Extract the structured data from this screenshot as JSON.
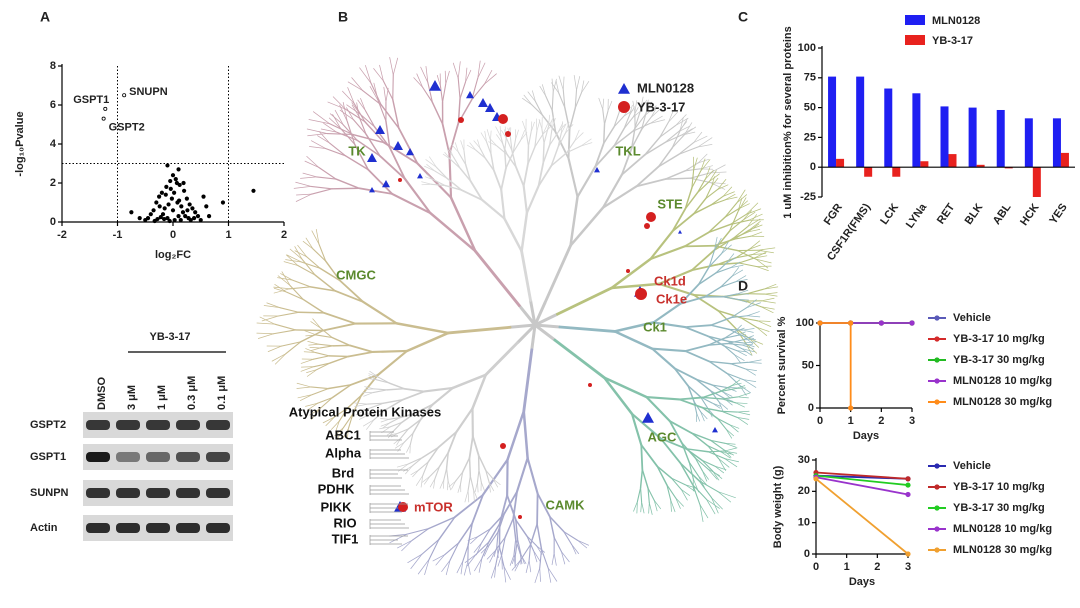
{
  "panel_labels": [
    "A",
    "B",
    "C",
    "D"
  ],
  "chart_data": [
    {
      "type": "scatter",
      "xlabel": "log₂FC",
      "ylabel": "-log₁₀Pvalue",
      "color": "#000000",
      "xlim": [
        -2,
        2
      ],
      "xticks": [
        -2,
        -1,
        0,
        1,
        2
      ],
      "ylim": [
        0,
        8
      ],
      "yticks": [
        0,
        2,
        4,
        6,
        8
      ],
      "vlines": [
        -1,
        1
      ],
      "hlines": [
        3
      ],
      "x": [
        -1.22,
        -0.88,
        -1.25,
        -0.1,
        0.1,
        1.45,
        0.9,
        -0.75,
        -0.6,
        0.6,
        0.55,
        0.0,
        0.05,
        -0.05,
        0.12,
        -0.12,
        0.2,
        -0.2,
        0.25,
        -0.25,
        0.3,
        -0.3,
        0.35,
        -0.35,
        0.4,
        -0.4,
        0.02,
        -0.02,
        0.08,
        -0.08,
        0.15,
        -0.15,
        0.18,
        -0.18,
        0.22,
        -0.22,
        0.28,
        -0.28,
        0.45,
        -0.45,
        0.5,
        0.0,
        0.1,
        -0.1,
        0.03,
        -0.06,
        0.14,
        -0.16,
        0.32,
        -0.33,
        0.07,
        -0.04,
        0.26,
        -0.24,
        0.38,
        0.65,
        -0.5,
        0.11,
        -0.13,
        0.19
      ],
      "values": [
        5.8,
        6.5,
        5.3,
        2.9,
        2.7,
        1.6,
        1.0,
        0.5,
        0.2,
        0.8,
        1.3,
        2.4,
        2.2,
        2.1,
        1.9,
        1.8,
        1.6,
        1.5,
        1.2,
        1.3,
        0.9,
        1.0,
        0.7,
        0.6,
        0.5,
        0.4,
        1.5,
        1.2,
        1.0,
        0.9,
        0.8,
        0.7,
        0.5,
        0.4,
        0.3,
        0.25,
        0.2,
        0.15,
        0.3,
        0.2,
        0.1,
        0.6,
        0.3,
        0.2,
        0.1,
        0.05,
        0.1,
        0.15,
        0.1,
        0.05,
        2.0,
        1.7,
        0.6,
        0.8,
        0.2,
        0.3,
        0.1,
        1.1,
        1.4,
        2.0
      ],
      "point_labels": [
        "GSPT1",
        "SNUPN",
        "GSPT2",
        null,
        null,
        null,
        null,
        null,
        null,
        null,
        null,
        null,
        null,
        null,
        null,
        null,
        null,
        null,
        null,
        null,
        null,
        null,
        null,
        null,
        null,
        null,
        null,
        null,
        null,
        null,
        null,
        null,
        null,
        null,
        null,
        null,
        null,
        null,
        null,
        null,
        null,
        null,
        null,
        null,
        null,
        null,
        null,
        null,
        null,
        null,
        null,
        null,
        null,
        null,
        null,
        null,
        null,
        null,
        null,
        null
      ]
    },
    {
      "type": "bar",
      "ylabel": "1 uM inhibition% for several proteins",
      "categories": [
        "FGR",
        "CSF1R(FMS)",
        "LCK",
        "LYNa",
        "RET",
        "BLK",
        "ABL",
        "HCK",
        "YES"
      ],
      "series": [
        {
          "name": "MLN0128",
          "color": "#1f1ff2",
          "values": [
            76,
            76,
            66,
            62,
            51,
            50,
            48,
            41,
            41
          ]
        },
        {
          "name": "YB-3-17",
          "color": "#e8221e",
          "values": [
            7,
            -8,
            -8,
            5,
            11,
            2,
            -1,
            -25,
            12
          ]
        }
      ],
      "ylim": [
        -25,
        100
      ],
      "yticks": [
        -25,
        0,
        25,
        50,
        75,
        100
      ]
    },
    {
      "type": "line",
      "ylabel": "Percent survival %",
      "xlabel": "Days",
      "x": [
        0,
        1,
        2,
        3
      ],
      "xlim": [
        0,
        3
      ],
      "xticks": [
        0,
        1,
        2,
        3
      ],
      "ylim": [
        0,
        100
      ],
      "yticks": [
        0,
        50,
        100
      ],
      "series": [
        {
          "name": "Vehicle",
          "color": "#5a5ab8",
          "values": [
            100,
            100,
            100,
            100
          ]
        },
        {
          "name": "YB-3-17 10 mg/kg",
          "color": "#d42a2a",
          "values": [
            100,
            100,
            100,
            100
          ]
        },
        {
          "name": "YB-3-17 30 mg/kg",
          "color": "#22bb22",
          "values": [
            100,
            100,
            100,
            100
          ]
        },
        {
          "name": "MLN0128 10 mg/kg",
          "color": "#9933cc",
          "values": [
            100,
            100,
            100,
            100
          ]
        },
        {
          "name": "MLN0128 30 mg/kg",
          "color": "#ff8c1a",
          "x": [
            0,
            1,
            1
          ],
          "values": [
            100,
            100,
            0
          ]
        }
      ]
    },
    {
      "type": "line",
      "ylabel": "Body weight (g)",
      "xlabel": "Days",
      "x": [
        0,
        3
      ],
      "xlim": [
        0,
        3
      ],
      "xticks": [
        0,
        1,
        2,
        3
      ],
      "ylim": [
        0,
        30
      ],
      "yticks": [
        0,
        10,
        20,
        30
      ],
      "series": [
        {
          "name": "Vehicle",
          "color": "#2a2ab0",
          "values": [
            25,
            24
          ]
        },
        {
          "name": "YB-3-17 10 mg/kg",
          "color": "#c02a2a",
          "values": [
            26,
            24
          ]
        },
        {
          "name": "YB-3-17 30 mg/kg",
          "color": "#22cc22",
          "values": [
            25,
            22
          ]
        },
        {
          "name": "MLN0128 10 mg/kg",
          "color": "#9933cc",
          "values": [
            24.5,
            19
          ]
        },
        {
          "name": "MLN0128 30 mg/kg",
          "color": "#f0a030",
          "values": [
            24,
            0
          ]
        }
      ]
    }
  ],
  "blot": {
    "treatment": "YB-3-17",
    "lanes": [
      "DMSO",
      "3 μM",
      "1 μM",
      "0.3 μM",
      "0.1 μM"
    ],
    "rows": [
      "GSPT2",
      "GSPT1",
      "SUNPN",
      "Actin"
    ]
  },
  "kinome": {
    "legend": [
      "MLN0128",
      "YB-3-17"
    ],
    "groups": [
      "TK",
      "TKL",
      "STE",
      "CMGC",
      "Ck1",
      "AGC",
      "CAMK"
    ],
    "highlights": [
      "Ck1d",
      "Ck1e",
      "mTOR"
    ],
    "atypical": {
      "title": "Atypical Protein Kinases",
      "families": [
        "ABC1",
        "Alpha",
        "Brd",
        "PDHK",
        "PIKK",
        "RIO",
        "TIF1"
      ]
    }
  }
}
